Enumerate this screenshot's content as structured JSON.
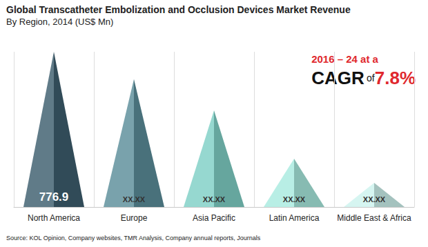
{
  "chart_data": {
    "type": "pyramid",
    "title": "Global Transcatheter Embolization and Occlusion Devices Market Revenue",
    "subtitle": "By Region, 2014 (US$ Mn)",
    "source": "Source: KOL Opinion, Company websites, TMR Analysis, Company annual reports, Journals",
    "annotation": {
      "period": "2016 – 24 at a",
      "label": "CAGR",
      "joiner": "of",
      "rate": "7.8%"
    },
    "categories": [
      "North America",
      "Europe",
      "Asia Pacific",
      "Latin America",
      "Middle East & Africa"
    ],
    "values": [
      776.9,
      639,
      483,
      242,
      121
    ],
    "value_labels": [
      "776.9",
      "XX.XX",
      "XX.XX",
      "XX.XX",
      "XX.XX"
    ],
    "colors": [
      "#3d5e6e",
      "#5b8d9a",
      "#7fcfc6",
      "#a9ead f",
      "#cdf3ee"
    ],
    "data_labels": true,
    "tick_labels": "x"
  }
}
